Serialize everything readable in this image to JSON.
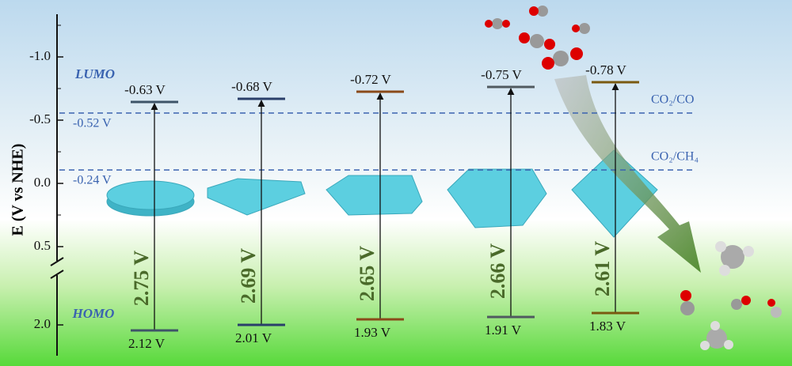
{
  "axis": {
    "title": "E (V vs NHE)",
    "ticks": [
      "-1.0",
      "-0.5",
      "0.0",
      "0.5",
      "2.0"
    ]
  },
  "labels": {
    "lumo": "LUMO",
    "homo": "HOMO"
  },
  "potentials": [
    {
      "label": "-0.52 V",
      "couple": "CO₂/CO"
    },
    {
      "label": "-0.24 V",
      "couple": "CO₂/CH₄"
    }
  ],
  "materials": [
    {
      "lumo": "-0.63 V",
      "homo": "2.12 V",
      "gap": "2.75 V"
    },
    {
      "lumo": "-0.68 V",
      "homo": "2.01 V",
      "gap": "2.69 V"
    },
    {
      "lumo": "-0.72 V",
      "homo": "1.93 V",
      "gap": "2.65 V"
    },
    {
      "lumo": "-0.75 V",
      "homo": "1.91 V",
      "gap": "2.66 V"
    },
    {
      "lumo": "-0.78 V",
      "homo": "1.83 V",
      "gap": "2.61 V"
    }
  ]
}
